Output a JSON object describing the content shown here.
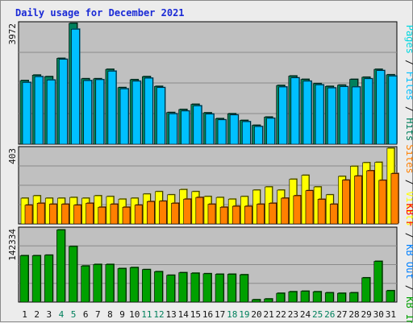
{
  "title": "Daily usage for December 2021",
  "colors": {
    "background": "#ececec",
    "plot_background": "#c0c0c0",
    "grid": "#8a8a8a",
    "hits": "#00805c",
    "files": "#00c0ff",
    "pages": "#00d8e0",
    "visits": "#ffff00",
    "sites": "#ff8000",
    "kbin": "#00a000",
    "kbout": "#0080ff",
    "kbf": "#ff0000",
    "day_normal": "#111111",
    "day_weekend": "#00805c"
  },
  "chart_data": [
    {
      "type": "bar",
      "panel": "hits-files-pages",
      "max_label": "3972",
      "ylim": [
        0,
        3972
      ],
      "x": [
        1,
        2,
        3,
        4,
        5,
        6,
        7,
        8,
        9,
        10,
        11,
        12,
        13,
        14,
        15,
        16,
        17,
        18,
        19,
        20,
        21,
        22,
        23,
        24,
        25,
        26,
        27,
        28,
        29,
        30,
        31
      ],
      "series": [
        {
          "name": "Hits",
          "values": [
            2090,
            2270,
            2220,
            2820,
            3972,
            2150,
            2150,
            2460,
            1860,
            2120,
            2220,
            1900,
            1040,
            1140,
            1310,
            1030,
            840,
            1000,
            780,
            620,
            890,
            1930,
            2240,
            2130,
            1990,
            1900,
            1940,
            2130,
            2200,
            2460,
            2280
          ]
        },
        {
          "name": "Files",
          "values": [
            2030,
            2220,
            2110,
            2790,
            3780,
            2090,
            2120,
            2400,
            1820,
            2070,
            2170,
            1860,
            1000,
            1090,
            1260,
            990,
            800,
            960,
            740,
            580,
            850,
            1880,
            2180,
            2070,
            1950,
            1850,
            1890,
            1880,
            2150,
            2420,
            2240
          ]
        },
        {
          "name": "Pages",
          "values": [
            0,
            0,
            0,
            0,
            0,
            0,
            0,
            0,
            0,
            0,
            0,
            0,
            0,
            0,
            0,
            0,
            0,
            0,
            0,
            0,
            0,
            0,
            0,
            0,
            0,
            0,
            0,
            0,
            0,
            0,
            0
          ]
        }
      ],
      "legend": [
        "Pages",
        "Files",
        "Hits"
      ]
    },
    {
      "type": "bar",
      "panel": "visits-sites",
      "max_label": "403",
      "ylim": [
        0,
        403
      ],
      "x": [
        1,
        2,
        3,
        4,
        5,
        6,
        7,
        8,
        9,
        10,
        11,
        12,
        13,
        14,
        15,
        16,
        17,
        18,
        19,
        20,
        21,
        22,
        23,
        24,
        25,
        26,
        27,
        28,
        29,
        30,
        31
      ],
      "series": [
        {
          "name": "Visits",
          "values": [
            137,
            150,
            137,
            137,
            141,
            137,
            150,
            146,
            132,
            137,
            159,
            172,
            155,
            183,
            172,
            146,
            141,
            132,
            146,
            180,
            197,
            180,
            238,
            259,
            197,
            155,
            253,
            307,
            326,
            328,
            403
          ]
        },
        {
          "name": "Sites",
          "values": [
            100,
            110,
            105,
            105,
            100,
            110,
            89,
            105,
            89,
            100,
            119,
            121,
            110,
            132,
            141,
            105,
            89,
            94,
            94,
            105,
            110,
            137,
            150,
            177,
            131,
            105,
            233,
            255,
            283,
            232,
            268
          ]
        }
      ],
      "legend": [
        "Sites",
        "Visits"
      ]
    },
    {
      "type": "bar",
      "panel": "kbytes",
      "max_label": "142334",
      "ylim": [
        0,
        142334
      ],
      "x": [
        1,
        2,
        3,
        4,
        5,
        6,
        7,
        8,
        9,
        10,
        11,
        12,
        13,
        14,
        15,
        16,
        17,
        18,
        19,
        20,
        21,
        22,
        23,
        24,
        25,
        26,
        27,
        28,
        29,
        30,
        31
      ],
      "series": [
        {
          "name": "KB In",
          "values": [
            90000,
            90000,
            91000,
            140000,
            108000,
            70000,
            73000,
            73000,
            65000,
            67000,
            63000,
            59000,
            52000,
            57000,
            56000,
            55000,
            54000,
            54000,
            53000,
            4500,
            6000,
            17000,
            20000,
            21000,
            20000,
            18000,
            17000,
            18000,
            47000,
            79000,
            22000
          ]
        },
        {
          "name": "KB Out",
          "values": [
            0,
            0,
            0,
            0,
            0,
            0,
            0,
            0,
            0,
            0,
            0,
            0,
            0,
            0,
            0,
            0,
            0,
            0,
            0,
            0,
            0,
            0,
            0,
            0,
            0,
            0,
            0,
            0,
            0,
            0,
            0
          ]
        },
        {
          "name": "KB F",
          "values": [
            0,
            0,
            0,
            0,
            0,
            0,
            0,
            0,
            0,
            0,
            0,
            0,
            0,
            0,
            0,
            0,
            0,
            0,
            0,
            0,
            0,
            0,
            0,
            0,
            0,
            0,
            0,
            0,
            0,
            0,
            0
          ]
        }
      ],
      "legend": [
        "KB F",
        "KB Out",
        "KB In"
      ]
    }
  ],
  "days": [
    "1",
    "2",
    "3",
    "4",
    "5",
    "6",
    "7",
    "8",
    "9",
    "10",
    "11",
    "12",
    "13",
    "14",
    "15",
    "16",
    "17",
    "18",
    "19",
    "20",
    "21",
    "22",
    "23",
    "24",
    "25",
    "26",
    "27",
    "28",
    "29",
    "30",
    "31"
  ],
  "weekend_days": [
    4,
    5,
    11,
    12,
    18,
    19,
    25,
    26
  ]
}
